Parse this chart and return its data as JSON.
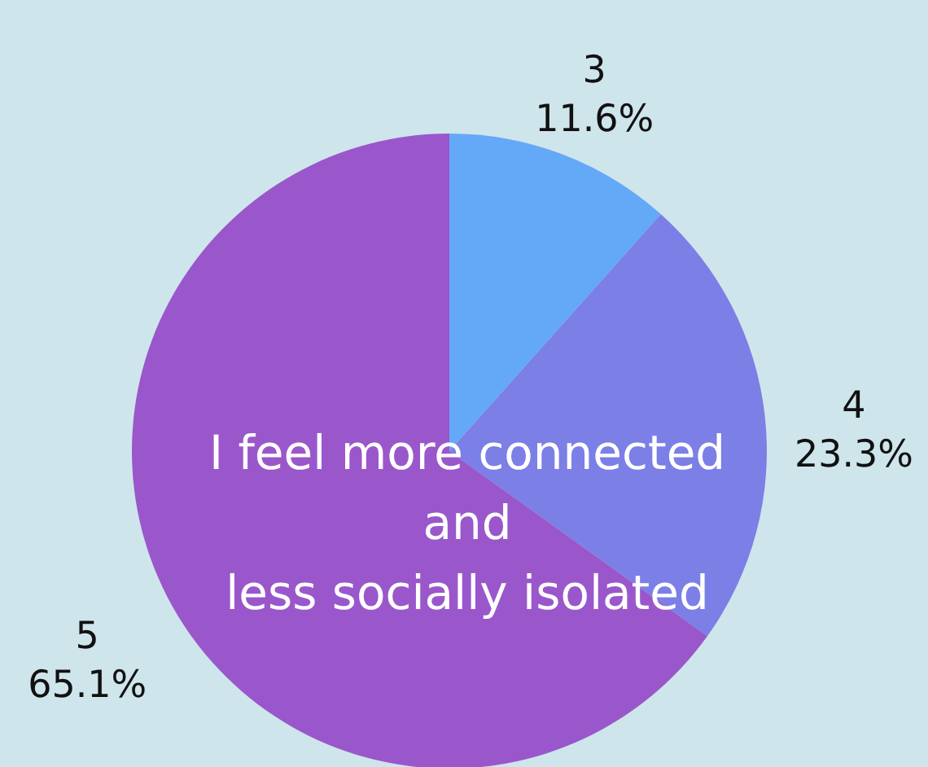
{
  "chart_data": {
    "type": "pie",
    "title": "I feel more connected\nand\n less socially isolated",
    "categories": [
      "3",
      "4",
      "5"
    ],
    "values": [
      11.6,
      23.3,
      65.1
    ],
    "value_labels": [
      "11.6%",
      "23.3%",
      "65.1%"
    ],
    "colors": [
      "#64a8f8",
      "#7b7fe6",
      "#9a57cb"
    ]
  }
}
